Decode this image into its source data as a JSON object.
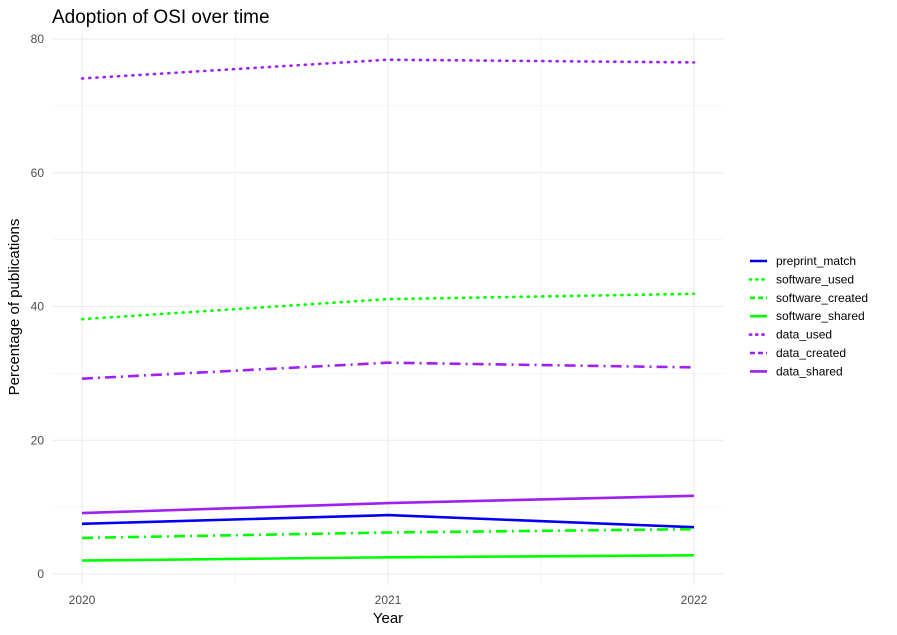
{
  "chart_data": {
    "type": "line",
    "title": "Adoption of OSI over time",
    "xlabel": "Year",
    "ylabel": "Percentage of publications",
    "x": [
      2020,
      2021,
      2022
    ],
    "x_tick_labels": [
      "2020",
      "2021",
      "2022"
    ],
    "ylim": [
      0,
      80
    ],
    "y_ticks": [
      0,
      20,
      40,
      60,
      80
    ],
    "y_tick_labels": [
      "0",
      "20",
      "40",
      "60",
      "80"
    ],
    "grid": true,
    "legend_position": "right",
    "series": [
      {
        "name": "preprint_match",
        "values": [
          7.5,
          8.8,
          7.0
        ],
        "color": "#0000ee",
        "linetype": "solid"
      },
      {
        "name": "software_used",
        "values": [
          38.1,
          41.1,
          41.9
        ],
        "color": "#00ff00",
        "linetype": "dotted"
      },
      {
        "name": "software_created",
        "values": [
          5.4,
          6.2,
          6.7
        ],
        "color": "#00ff00",
        "linetype": "dashdot"
      },
      {
        "name": "software_shared",
        "values": [
          2.0,
          2.5,
          2.8
        ],
        "color": "#00ff00",
        "linetype": "solid"
      },
      {
        "name": "data_used",
        "values": [
          74.1,
          76.9,
          76.5
        ],
        "color": "#a020f0",
        "linetype": "dotted"
      },
      {
        "name": "data_created",
        "values": [
          29.2,
          31.6,
          30.9
        ],
        "color": "#a020f0",
        "linetype": "dashdot"
      },
      {
        "name": "data_shared",
        "values": [
          9.1,
          10.6,
          11.7
        ],
        "color": "#a020f0",
        "linetype": "solid"
      }
    ],
    "legend": [
      {
        "label": "preprint_match",
        "color": "#0000ee",
        "linetype": "solid"
      },
      {
        "label": "software_used",
        "color": "#00ff00",
        "linetype": "dotted"
      },
      {
        "label": "software_created",
        "color": "#00ff00",
        "linetype": "dashed"
      },
      {
        "label": "software_shared",
        "color": "#00ff00",
        "linetype": "solid"
      },
      {
        "label": "data_used",
        "color": "#a020f0",
        "linetype": "dotted"
      },
      {
        "label": "data_created",
        "color": "#a020f0",
        "linetype": "dashed"
      },
      {
        "label": "data_shared",
        "color": "#a020f0",
        "linetype": "solid"
      }
    ]
  }
}
